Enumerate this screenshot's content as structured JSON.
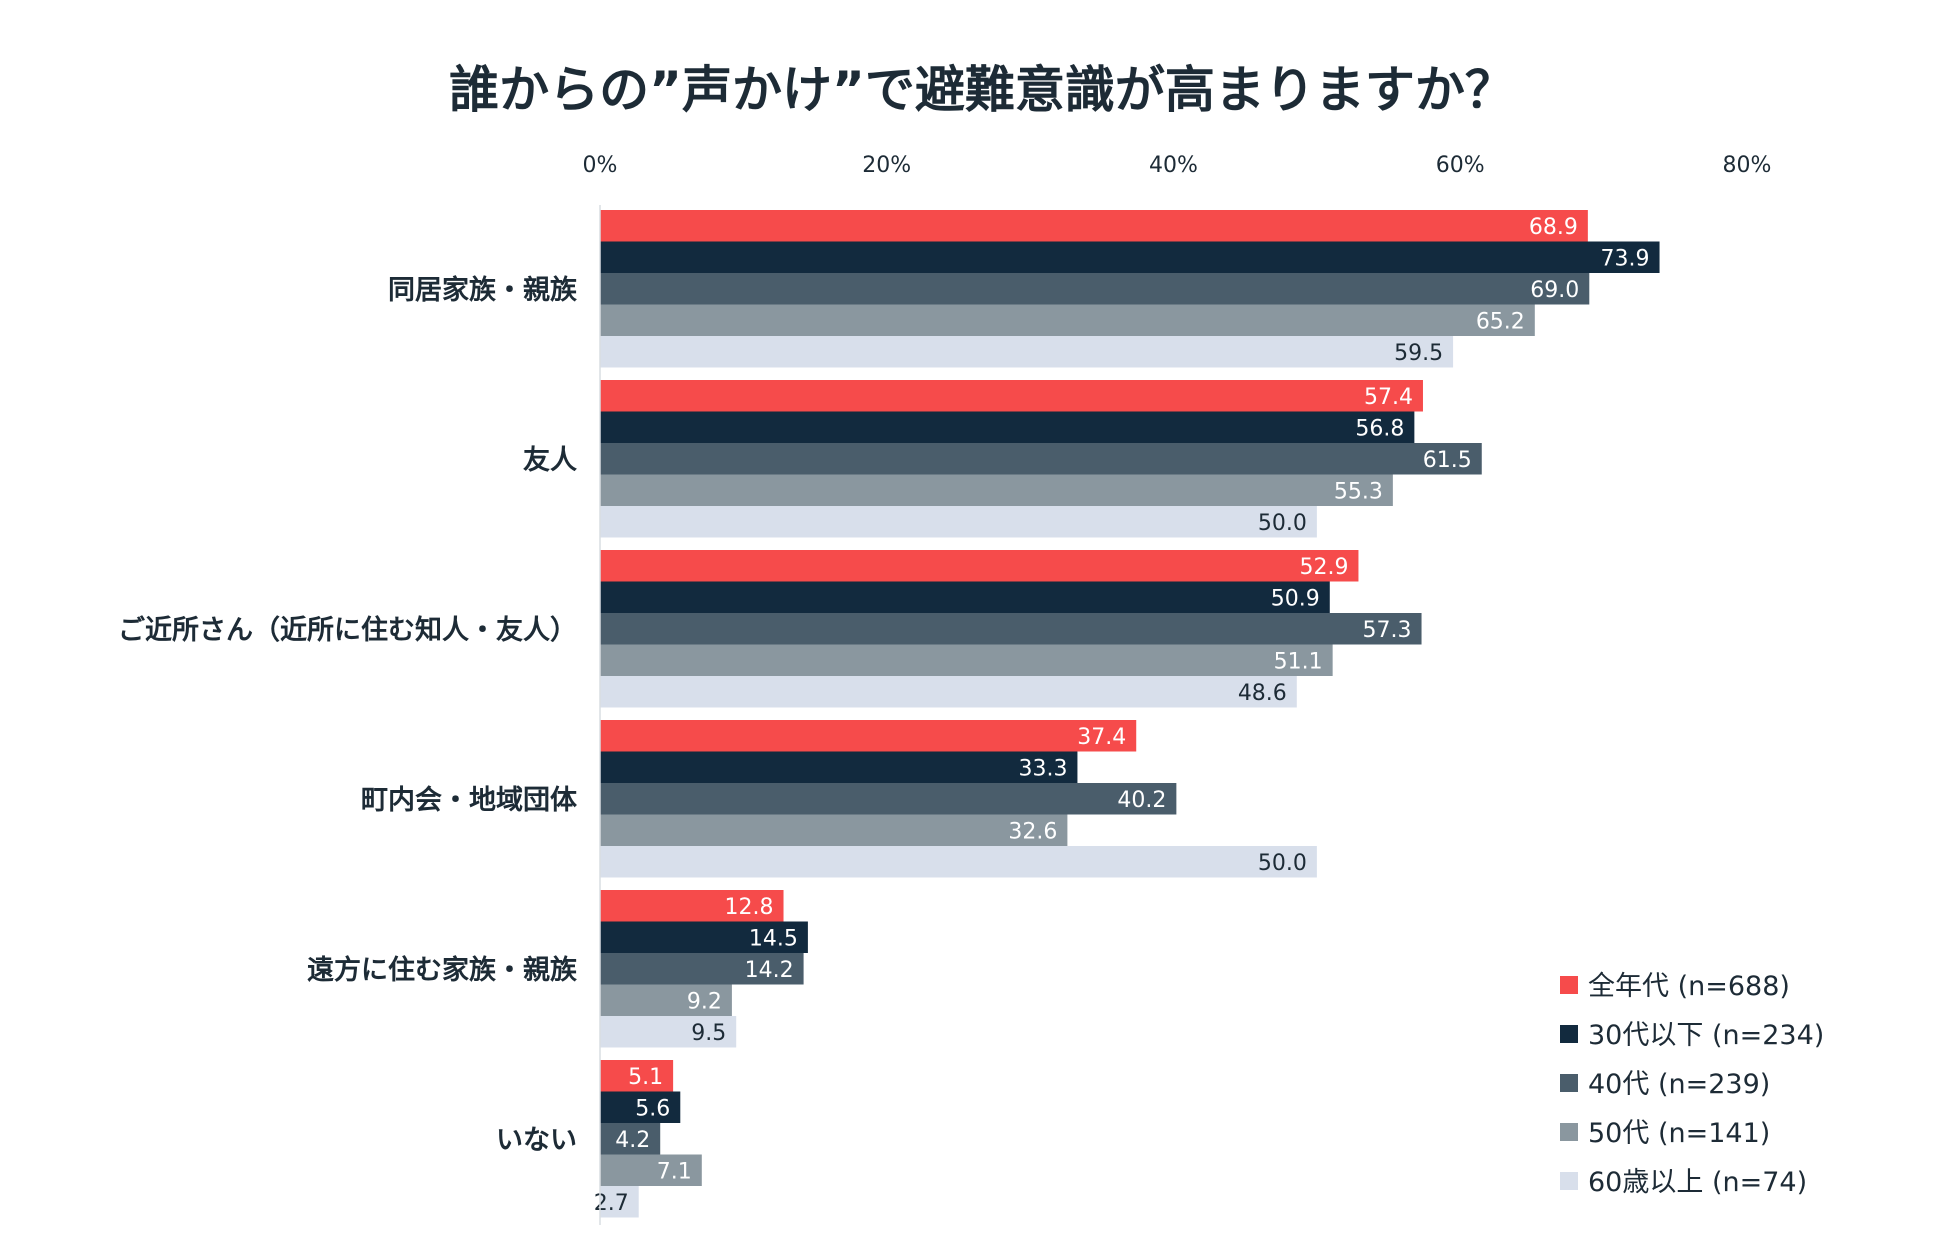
{
  "chart_data": {
    "type": "bar",
    "orientation": "horizontal",
    "title": "誰からの”声かけ”で避難意識が高まりますか？",
    "xlabel": "",
    "ylabel": "",
    "xlim": [
      0,
      80
    ],
    "x_ticks": [
      0,
      20,
      40,
      60,
      80
    ],
    "x_tick_labels": [
      "0%",
      "20%",
      "40%",
      "60%",
      "80%"
    ],
    "grid": false,
    "legend_position": "bottom-right",
    "categories": [
      "同居家族・親族",
      "友人",
      "ご近所さん（近所に住む知人・友人）",
      "町内会・地域団体",
      "遠方に住む家族・親族",
      "いない"
    ],
    "series": [
      {
        "name": "全年代 (n=688)",
        "color": "#f64b4b",
        "label_color": "#ffffff",
        "values": [
          68.9,
          57.4,
          52.9,
          37.4,
          12.8,
          5.1
        ],
        "value_labels": [
          "68.9",
          "57.4",
          "52.9",
          "37.4",
          "12.8",
          "5.1"
        ]
      },
      {
        "name": "30代以下 (n=234)",
        "color": "#122a3e",
        "label_color": "#ffffff",
        "values": [
          73.9,
          56.8,
          50.9,
          33.3,
          14.5,
          5.6
        ],
        "value_labels": [
          "73.9",
          "56.8",
          "50.9",
          "33.3",
          "14.5",
          "5.6"
        ]
      },
      {
        "name": "40代 (n=239)",
        "color": "#4a5d6b",
        "label_color": "#ffffff",
        "values": [
          69.0,
          61.5,
          57.3,
          40.2,
          14.2,
          4.2
        ],
        "value_labels": [
          "69.0",
          "61.5",
          "57.3",
          "40.2",
          "14.2",
          "4.2"
        ]
      },
      {
        "name": "50代 (n=141)",
        "color": "#8a979f",
        "label_color": "#ffffff",
        "values": [
          65.2,
          55.3,
          51.1,
          32.6,
          9.2,
          7.1
        ],
        "value_labels": [
          "65.2",
          "55.3",
          "51.1",
          "32.6",
          "9.2",
          "7.1"
        ]
      },
      {
        "name": "60歳以上 (n=74)",
        "color": "#d8dfeb",
        "label_color": "#1d2b36",
        "values": [
          59.5,
          50.0,
          48.6,
          50.0,
          9.5,
          2.7
        ],
        "value_labels": [
          "59.5",
          "50.0",
          "48.6",
          "50.0",
          "9.5",
          "2.7"
        ]
      }
    ]
  }
}
